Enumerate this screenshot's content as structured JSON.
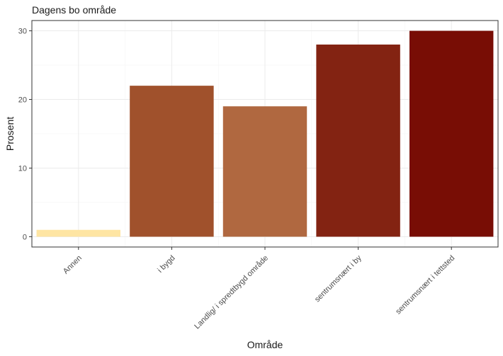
{
  "chart_data": {
    "type": "bar",
    "title": "Dagens bo område",
    "xlabel": "Område",
    "ylabel": "Prosent",
    "categories": [
      "Annen",
      "i bygd",
      "Landlig/ i spredtbygd område",
      "sentrumsnært i by",
      "sentrumsnært i tettsted"
    ],
    "values": [
      1,
      22,
      19,
      28,
      30
    ],
    "colors": [
      "#fee5a3",
      "#a0512c",
      "#b06840",
      "#832312",
      "#780d05"
    ],
    "ylim": [
      -1.5,
      31.5
    ],
    "yticks": [
      0,
      10,
      20,
      30
    ],
    "yticklabels": [
      "0",
      "10",
      "20",
      "30"
    ],
    "grid": true,
    "legend": "none"
  }
}
